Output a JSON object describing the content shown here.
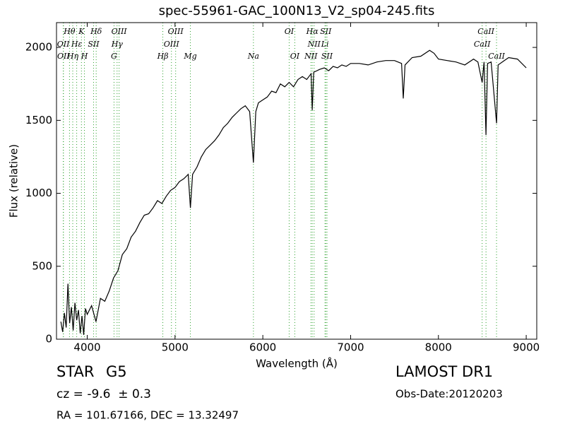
{
  "chart_data": {
    "type": "line",
    "title": "spec-55961-GAC_100N13_V2_sp04-245.fits",
    "x_label": "Wavelength (Å)",
    "y_label": "Flux (relative)",
    "xlim": [
      3650,
      9120
    ],
    "ylim": [
      0,
      2170
    ],
    "xticks": [
      4000,
      5000,
      6000,
      7000,
      8000,
      9000
    ],
    "yticks": [
      0,
      500,
      1000,
      1500,
      2000
    ],
    "x": [
      3700,
      3720,
      3740,
      3760,
      3780,
      3800,
      3820,
      3840,
      3860,
      3880,
      3900,
      3920,
      3940,
      3960,
      3980,
      4000,
      4050,
      4100,
      4150,
      4200,
      4250,
      4300,
      4350,
      4400,
      4450,
      4500,
      4550,
      4600,
      4650,
      4700,
      4750,
      4800,
      4850,
      4900,
      4950,
      5000,
      5050,
      5100,
      5150,
      5175,
      5200,
      5250,
      5300,
      5350,
      5400,
      5450,
      5500,
      5550,
      5600,
      5650,
      5700,
      5750,
      5800,
      5850,
      5893,
      5920,
      5950,
      6000,
      6050,
      6100,
      6150,
      6200,
      6250,
      6300,
      6350,
      6400,
      6450,
      6500,
      6550,
      6563,
      6580,
      6650,
      6700,
      6750,
      6800,
      6850,
      6900,
      6950,
      7000,
      7100,
      7200,
      7300,
      7400,
      7500,
      7580,
      7600,
      7620,
      7700,
      7800,
      7900,
      7950,
      8000,
      8100,
      8200,
      8300,
      8400,
      8450,
      8498,
      8520,
      8542,
      8560,
      8600,
      8662,
      8680,
      8750,
      8800,
      8900,
      9000
    ],
    "series": [
      {
        "color": "#000000",
        "values": [
          120,
          50,
          180,
          80,
          380,
          110,
          220,
          60,
          250,
          130,
          200,
          40,
          160,
          30,
          210,
          170,
          230,
          120,
          280,
          260,
          330,
          420,
          470,
          580,
          620,
          700,
          740,
          800,
          850,
          860,
          900,
          950,
          930,
          980,
          1020,
          1040,
          1080,
          1100,
          1130,
          900,
          1130,
          1180,
          1250,
          1300,
          1330,
          1360,
          1400,
          1450,
          1480,
          1520,
          1550,
          1580,
          1600,
          1560,
          1210,
          1560,
          1620,
          1640,
          1660,
          1700,
          1690,
          1750,
          1730,
          1760,
          1730,
          1780,
          1800,
          1780,
          1820,
          1570,
          1830,
          1850,
          1860,
          1840,
          1870,
          1860,
          1880,
          1870,
          1890,
          1890,
          1880,
          1900,
          1910,
          1910,
          1890,
          1650,
          1880,
          1930,
          1940,
          1980,
          1960,
          1920,
          1910,
          1900,
          1880,
          1920,
          1900,
          1760,
          1900,
          1400,
          1890,
          1900,
          1480,
          1880,
          1910,
          1930,
          1920,
          1860
        ]
      }
    ],
    "line_color": "#2ca02c",
    "spectral_lines": [
      {
        "label": "Hθ",
        "x": 3798,
        "row": 1
      },
      {
        "label": "K",
        "x": 3934,
        "row": 1
      },
      {
        "label": "Hδ",
        "x": 4102,
        "row": 1
      },
      {
        "label": "OIII",
        "x": 4363,
        "row": 1
      },
      {
        "label": "OIII",
        "x": 5007,
        "row": 1
      },
      {
        "label": "OI",
        "x": 6300,
        "row": 1
      },
      {
        "label": "Hα",
        "x": 6563,
        "row": 1
      },
      {
        "label": "SII",
        "x": 6717,
        "row": 1
      },
      {
        "label": "CaII",
        "x": 8542,
        "row": 1
      },
      {
        "label": "OII",
        "x": 3727,
        "row": 2
      },
      {
        "label": "Hε",
        "x": 3880,
        "row": 2
      },
      {
        "label": "SII",
        "x": 4072,
        "row": 2
      },
      {
        "label": "Hγ",
        "x": 4340,
        "row": 2
      },
      {
        "label": "OIII",
        "x": 4959,
        "row": 2
      },
      {
        "label": "NII",
        "x": 6584,
        "row": 2
      },
      {
        "label": "Li",
        "x": 6708,
        "row": 2
      },
      {
        "label": "CaII",
        "x": 8498,
        "row": 2
      },
      {
        "label": "OII",
        "x": 3729,
        "row": 3
      },
      {
        "label": "Hη",
        "x": 3835,
        "row": 3
      },
      {
        "label": "H",
        "x": 3968,
        "row": 3
      },
      {
        "label": "G",
        "x": 4305,
        "row": 3
      },
      {
        "label": "Hβ",
        "x": 4861,
        "row": 3
      },
      {
        "label": "Mg",
        "x": 5175,
        "row": 3
      },
      {
        "label": "Na",
        "x": 5893,
        "row": 3
      },
      {
        "label": "OI",
        "x": 6364,
        "row": 3
      },
      {
        "label": "NII",
        "x": 6548,
        "row": 3
      },
      {
        "label": "SII",
        "x": 6731,
        "row": 3
      },
      {
        "label": "CaII",
        "x": 8662,
        "row": 3
      }
    ]
  },
  "footer": {
    "object_class": "STAR",
    "subclass": "G5",
    "redshift": "cz = -9.6  ± 0.3",
    "survey": "LAMOST DR1",
    "obs_date": "Obs-Date:20120203",
    "coords": "RA = 101.67166, DEC = 13.32497"
  }
}
